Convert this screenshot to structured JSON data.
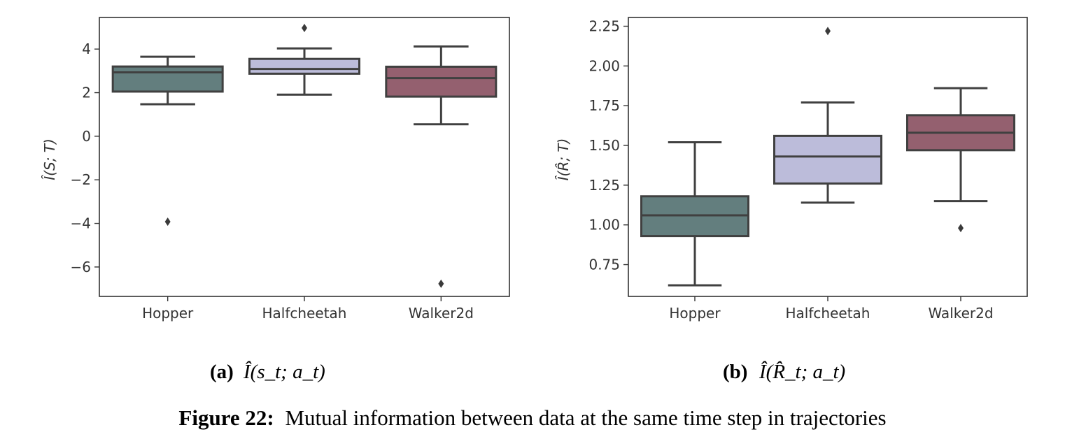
{
  "chart_data": [
    {
      "type": "box",
      "panel_label": "(a)",
      "caption_math": "Î(s_t; a_t)",
      "ylabel": "Î(S; T)",
      "categories": [
        "Hopper",
        "Halfcheetah",
        "Walker2d"
      ],
      "ylim": [
        -7.35,
        5.45
      ],
      "yticks": [
        -6,
        -4,
        -2,
        0,
        2,
        4
      ],
      "ytick_labels": [
        "−6",
        "−4",
        "−2",
        "0",
        "2",
        "4"
      ],
      "colors": [
        "#637E7E",
        "#BCBCDA",
        "#94606F"
      ],
      "boxes": [
        {
          "whislo": 1.47,
          "q1": 2.05,
          "med": 2.93,
          "q3": 3.2,
          "whishi": 3.65,
          "fliers": [
            -3.92
          ]
        },
        {
          "whislo": 1.91,
          "q1": 2.87,
          "med": 3.09,
          "q3": 3.55,
          "whishi": 4.03,
          "fliers": [
            4.97
          ]
        },
        {
          "whislo": 0.55,
          "q1": 1.82,
          "med": 2.67,
          "q3": 3.19,
          "whishi": 4.12,
          "fliers": [
            -6.77
          ]
        }
      ]
    },
    {
      "type": "box",
      "panel_label": "(b)",
      "caption_math": "Î(R̂_t; a_t)",
      "ylabel": "Î(R̂; T)",
      "categories": [
        "Hopper",
        "Halfcheetah",
        "Walker2d"
      ],
      "ylim": [
        0.55,
        2.305
      ],
      "yticks": [
        0.75,
        1.0,
        1.25,
        1.5,
        1.75,
        2.0,
        2.25
      ],
      "ytick_labels": [
        "0.75",
        "1.00",
        "1.25",
        "1.50",
        "1.75",
        "2.00",
        "2.25"
      ],
      "colors": [
        "#637E7E",
        "#BCBCDA",
        "#94606F"
      ],
      "boxes": [
        {
          "whislo": 0.62,
          "q1": 0.93,
          "med": 1.06,
          "q3": 1.18,
          "whishi": 1.52,
          "fliers": []
        },
        {
          "whislo": 1.14,
          "q1": 1.26,
          "med": 1.43,
          "q3": 1.56,
          "whishi": 1.77,
          "fliers": [
            2.22
          ]
        },
        {
          "whislo": 1.15,
          "q1": 1.47,
          "med": 1.58,
          "q3": 1.69,
          "whishi": 1.86,
          "fliers": [
            0.98
          ]
        }
      ]
    }
  ],
  "captions": {
    "a_label": "(a)",
    "b_label": "(b)",
    "figure_label": "Figure 22:",
    "figure_text": "Mutual information between data at the same time step in trajectories"
  }
}
